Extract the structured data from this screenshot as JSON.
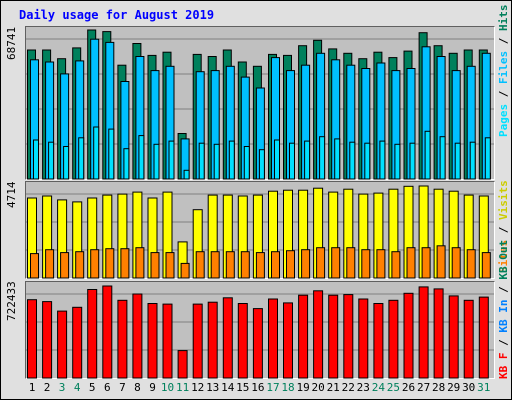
{
  "title": "Daily usage for August 2019",
  "colors": {
    "hits": "#00805c",
    "files": "#00c0ff",
    "pages": "#00e0ff",
    "visits": "#ffff00",
    "sites": "#ff8000",
    "kbytes": "#ff0000",
    "weekend": "#00805c",
    "title": "#0000ff",
    "panel_bg": "#c0c0c0"
  },
  "chart_data": [
    {
      "type": "bar",
      "panel": "hits-files-pages",
      "ymax_label": "68741",
      "ylim": [
        0,
        68741
      ],
      "categories": [
        "1",
        "2",
        "3",
        "4",
        "5",
        "6",
        "7",
        "8",
        "9",
        "10",
        "11",
        "12",
        "13",
        "14",
        "15",
        "16",
        "17",
        "18",
        "19",
        "20",
        "21",
        "22",
        "23",
        "24",
        "25",
        "26",
        "27",
        "28",
        "29",
        "30",
        "31"
      ],
      "weekend": [
        "3",
        "4",
        "10",
        "11",
        "17",
        "18",
        "24",
        "25",
        "31"
      ],
      "series": [
        {
          "name": "Hits",
          "values": [
            59500,
            59500,
            55500,
            60500,
            68741,
            68000,
            52500,
            62500,
            57000,
            58500,
            21000,
            57500,
            56500,
            59500,
            54000,
            52000,
            57500,
            57000,
            61500,
            64000,
            60000,
            58000,
            55500,
            58500,
            56000,
            59000,
            67500,
            61500,
            58000,
            59500,
            59500
          ]
        },
        {
          "name": "Files",
          "values": [
            55000,
            54000,
            48500,
            54500,
            64500,
            63000,
            45000,
            56500,
            50000,
            52000,
            18500,
            49500,
            50000,
            52000,
            47000,
            42000,
            56000,
            50000,
            52500,
            58000,
            55000,
            52500,
            51000,
            53500,
            50000,
            51000,
            61000,
            56500,
            50000,
            52000,
            58000
          ]
        },
        {
          "name": "Pages",
          "values": [
            18000,
            17000,
            15000,
            19000,
            24000,
            23000,
            14000,
            20000,
            16000,
            17500,
            4000,
            16500,
            16000,
            17500,
            15000,
            13500,
            18000,
            16500,
            17500,
            19500,
            18500,
            17000,
            16500,
            17500,
            16000,
            16500,
            22000,
            19500,
            16500,
            17000,
            19000
          ]
        }
      ]
    },
    {
      "type": "bar",
      "panel": "visits-sites",
      "ymax_label": "4714",
      "ylim": [
        0,
        4714
      ],
      "categories": [
        "1",
        "2",
        "3",
        "4",
        "5",
        "6",
        "7",
        "8",
        "9",
        "10",
        "11",
        "12",
        "13",
        "14",
        "15",
        "16",
        "17",
        "18",
        "19",
        "20",
        "21",
        "22",
        "23",
        "24",
        "25",
        "26",
        "27",
        "28",
        "29",
        "30",
        "31"
      ],
      "series": [
        {
          "name": "Visits",
          "values": [
            4100,
            4200,
            4000,
            3900,
            4100,
            4250,
            4300,
            4400,
            4100,
            4400,
            1850,
            3500,
            4250,
            4250,
            4200,
            4250,
            4450,
            4500,
            4500,
            4600,
            4400,
            4550,
            4300,
            4350,
            4550,
            4700,
            4714,
            4550,
            4450,
            4250,
            4200
          ]
        },
        {
          "name": "Sites",
          "values": [
            1250,
            1450,
            1300,
            1350,
            1450,
            1500,
            1500,
            1550,
            1300,
            1300,
            750,
            1350,
            1350,
            1350,
            1350,
            1300,
            1350,
            1400,
            1450,
            1550,
            1550,
            1550,
            1450,
            1450,
            1350,
            1550,
            1550,
            1650,
            1550,
            1450,
            1300
          ]
        }
      ]
    },
    {
      "type": "bar",
      "panel": "kbytes",
      "ymax_label": "722433",
      "ylim": [
        0,
        722433
      ],
      "categories": [
        "1",
        "2",
        "3",
        "4",
        "5",
        "6",
        "7",
        "8",
        "9",
        "10",
        "11",
        "12",
        "13",
        "14",
        "15",
        "16",
        "17",
        "18",
        "19",
        "20",
        "21",
        "22",
        "23",
        "24",
        "25",
        "26",
        "27",
        "28",
        "29",
        "30",
        "31"
      ],
      "series": [
        {
          "name": "KBytes",
          "values": [
            615000,
            600000,
            525000,
            555000,
            695000,
            722433,
            610000,
            660000,
            585000,
            580000,
            215000,
            580000,
            595000,
            630000,
            585000,
            545000,
            620000,
            590000,
            650000,
            685000,
            650000,
            655000,
            620000,
            585000,
            610000,
            665000,
            715000,
            700000,
            645000,
            610000,
            635000
          ]
        }
      ]
    }
  ],
  "right_labels": {
    "panel1": {
      "pages": "Pages",
      "files": "Files",
      "hits": "Hits",
      "sep": " / "
    },
    "panel2": {
      "sites": "Sites",
      "visits": "Visits",
      "sep": " / "
    },
    "panel3": {
      "kbf": "KB F",
      "kbin": "KB In",
      "kbout": "KB Out",
      "sep": " / "
    }
  }
}
